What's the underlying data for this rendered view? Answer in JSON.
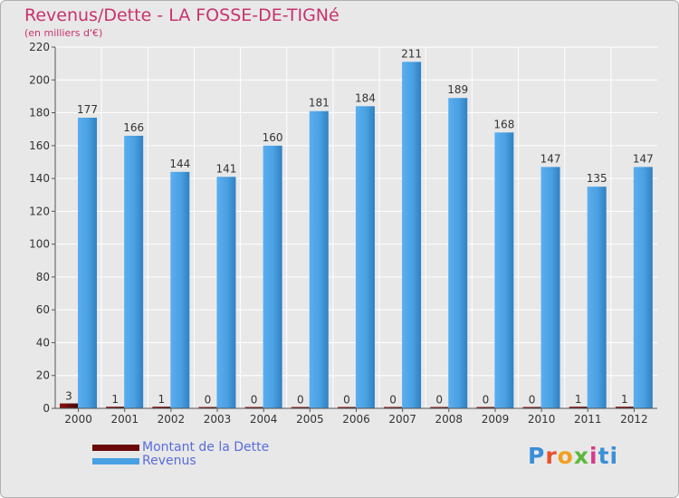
{
  "title": "Revenus/Dette - LA FOSSE-DE-TIGNé",
  "subtitle": "(en milliers d'€)",
  "chart_data": {
    "type": "bar",
    "categories": [
      "2000",
      "2001",
      "2002",
      "2003",
      "2004",
      "2005",
      "2006",
      "2007",
      "2008",
      "2009",
      "2010",
      "2011",
      "2012"
    ],
    "series": [
      {
        "name": "Montant de la Dette",
        "color": "#6b0a0a",
        "values": [
          3,
          1,
          1,
          0,
          0,
          0,
          0,
          0,
          0,
          0,
          0,
          1,
          1
        ]
      },
      {
        "name": "Revenus",
        "color": "#4aa0e0",
        "values": [
          177,
          166,
          144,
          141,
          160,
          181,
          184,
          211,
          189,
          168,
          147,
          135,
          147
        ]
      }
    ],
    "ylim": [
      0,
      220
    ],
    "yticks": [
      0,
      20,
      40,
      60,
      80,
      100,
      120,
      140,
      160,
      180,
      200,
      220
    ],
    "grid": true,
    "legend": "bottom-left"
  },
  "logo": {
    "text": "Proxiti",
    "letters": [
      "P",
      "r",
      "o",
      "x",
      "i",
      "ti"
    ]
  }
}
